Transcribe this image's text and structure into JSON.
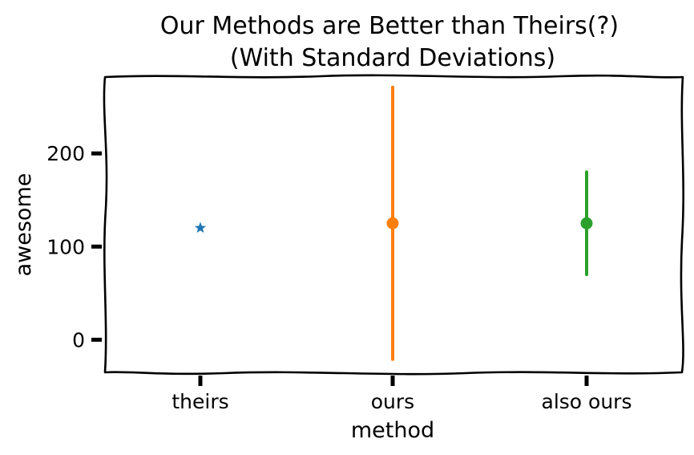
{
  "chart_data": {
    "type": "scatter",
    "title": [
      "Our Methods are Better than Theirs(?)",
      "(With Standard Deviations)"
    ],
    "xlabel": "method",
    "ylabel": "awesome",
    "categories": [
      "theirs",
      "ours",
      "also ours"
    ],
    "ylim": [
      -35,
      282
    ],
    "yticks": [
      0,
      100,
      200
    ],
    "grid": false,
    "legend": "none",
    "series": [
      {
        "category": "theirs",
        "mean": 120,
        "std": 0,
        "marker": "star",
        "color": "#1f77b4"
      },
      {
        "category": "ours",
        "mean": 125,
        "std": 146,
        "marker": "circle",
        "color": "#ff7f0e"
      },
      {
        "category": "also ours",
        "mean": 125,
        "std": 55,
        "marker": "circle",
        "color": "#2ca02c"
      }
    ]
  }
}
